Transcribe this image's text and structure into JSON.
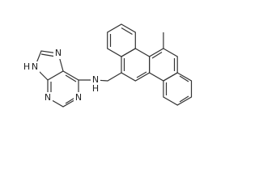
{
  "atom_labels": [
    "N",
    "N",
    "H",
    "N",
    "N",
    "N",
    "H"
  ]
}
